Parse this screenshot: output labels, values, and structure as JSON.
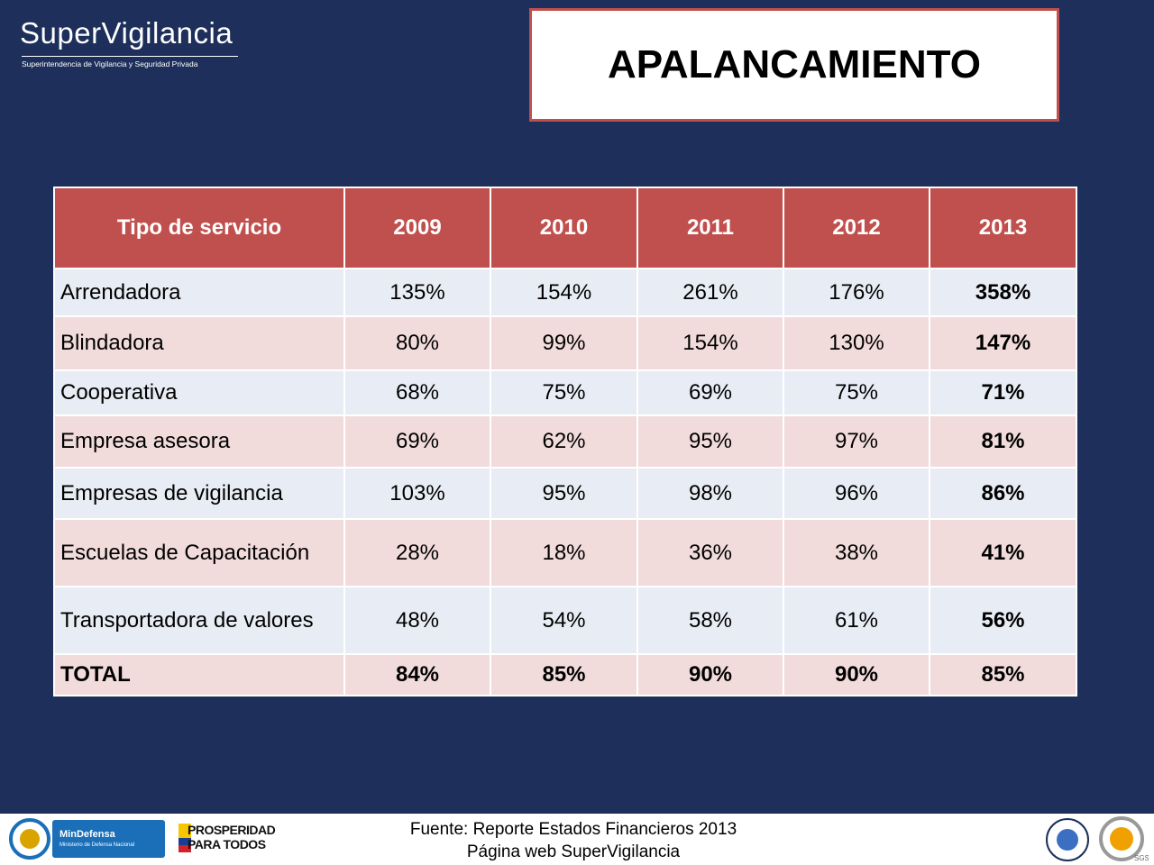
{
  "header": {
    "logo_title": "SuperVigilancia",
    "logo_subtitle": "Superintendencia de Vigilancia y Seguridad Privada",
    "title": "APALANCAMIENTO"
  },
  "table": {
    "headers": [
      "Tipo de servicio",
      "2009",
      "2010",
      "2011",
      "2012",
      "2013"
    ],
    "rows": [
      [
        "Arrendadora",
        "135%",
        "154%",
        "261%",
        "176%",
        "358%"
      ],
      [
        "Blindadora",
        "80%",
        "99%",
        "154%",
        "130%",
        "147%"
      ],
      [
        "Cooperativa",
        "68%",
        "75%",
        "69%",
        "75%",
        "71%"
      ],
      [
        "Empresa asesora",
        "69%",
        "62%",
        "95%",
        "97%",
        "81%"
      ],
      [
        "Empresas de vigilancia",
        "103%",
        "95%",
        "98%",
        "96%",
        "86%"
      ],
      [
        "Escuelas de Capacitación",
        "28%",
        "18%",
        "36%",
        "38%",
        "41%"
      ],
      [
        "Transportadora de valores",
        "48%",
        "54%",
        "58%",
        "61%",
        "56%"
      ],
      [
        "TOTAL",
        "84%",
        "85%",
        "90%",
        "90%",
        "85%"
      ]
    ]
  },
  "footer": {
    "source": [
      "Fuente: Reporte Estados Financieros 2013",
      "Página web SuperVigilancia"
    ],
    "mindefensa": "MinDefensa",
    "mindefensa_sub": "Ministerio de Defensa Nacional",
    "prosperidad": [
      "PROSPERIDAD",
      "PARA TODOS"
    ],
    "sgs": "SGS"
  }
}
